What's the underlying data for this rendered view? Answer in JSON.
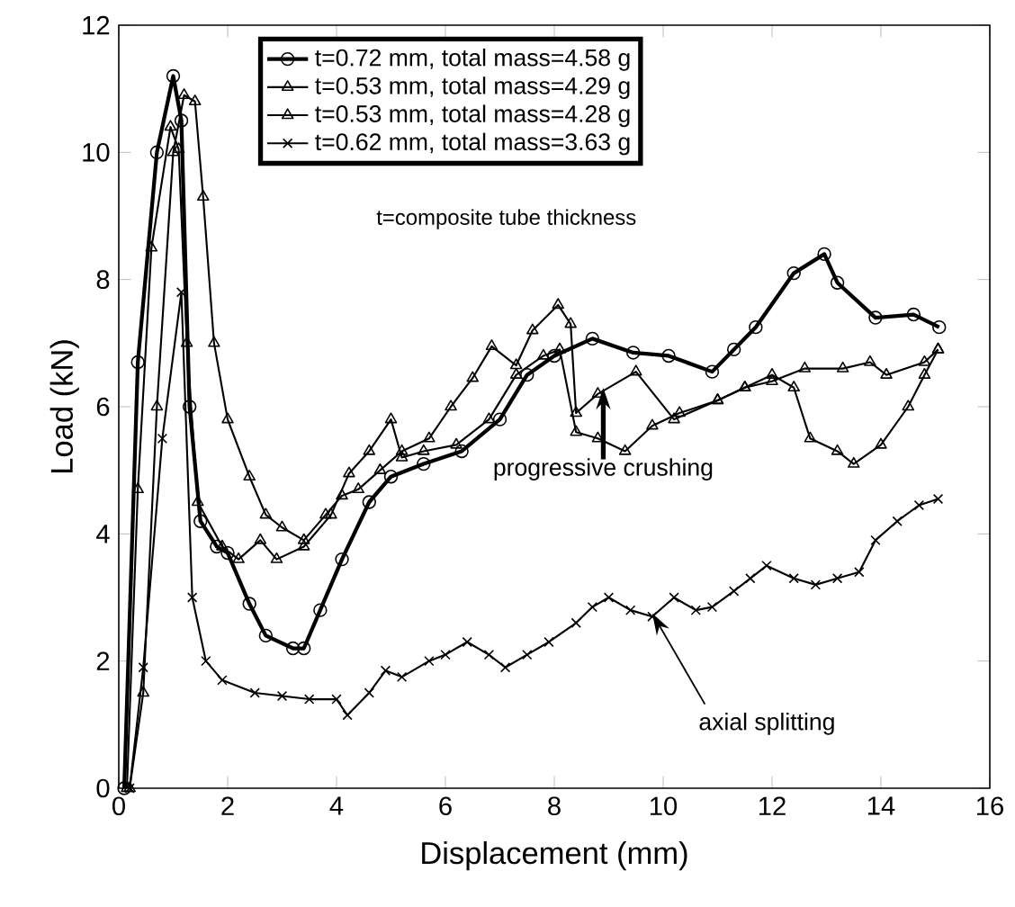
{
  "chart_data": {
    "type": "line",
    "xlabel": "Displacement (mm)",
    "ylabel": "Load (kN)",
    "xlim": [
      0,
      16
    ],
    "ylim": [
      0,
      12
    ],
    "xticks": [
      0,
      2,
      4,
      6,
      8,
      10,
      12,
      14,
      16
    ],
    "yticks": [
      0,
      2,
      4,
      6,
      8,
      10,
      12
    ],
    "grid": false,
    "legend": "top",
    "line_style": "solid",
    "series": [
      {
        "name": "t=0.72 mm, total mass=4.58 g",
        "color": "#000000",
        "marker": "circle",
        "x": [
          0.1,
          0.35,
          0.7,
          1.0,
          1.15,
          1.3,
          1.5,
          1.8,
          2.0,
          2.4,
          2.7,
          3.2,
          3.4,
          3.7,
          4.1,
          4.6,
          5.0,
          5.6,
          6.3,
          7.0,
          7.5,
          8.0,
          8.7,
          9.45,
          10.1,
          10.9,
          11.3,
          11.7,
          12.4,
          12.96,
          13.2,
          13.9,
          14.6,
          15.07
        ],
        "values": [
          0,
          6.7,
          10,
          11.2,
          10.5,
          6,
          4.2,
          3.8,
          3.7,
          2.9,
          2.4,
          2.2,
          2.2,
          2.8,
          3.6,
          4.5,
          4.9,
          5.1,
          5.3,
          5.8,
          6.5,
          6.8,
          7.07,
          6.85,
          6.8,
          6.55,
          6.9,
          7.25,
          8.1,
          8.4,
          7.95,
          7.4,
          7.45,
          7.25
        ]
      },
      {
        "name": "t=0.53 mm,  total mass=4.29 g",
        "color": "#000000",
        "marker": "triangle",
        "x": [
          0.2,
          0.45,
          0.7,
          1.0,
          1.2,
          1.4,
          1.55,
          1.75,
          2.0,
          2.4,
          2.7,
          3.0,
          3.4,
          3.8,
          4.1,
          4.4,
          4.8,
          5.2,
          5.7,
          6.1,
          6.5,
          6.85,
          7.3,
          7.6,
          8.07,
          8.3,
          8.4,
          8.8,
          9.5,
          10.2,
          11.0,
          11.5,
          12.0,
          12.6,
          13.3,
          13.8,
          14.1,
          14.8,
          15.05
        ],
        "values": [
          0,
          1.5,
          6,
          10,
          10.9,
          10.8,
          9.3,
          7,
          5.8,
          4.9,
          4.3,
          4.1,
          3.9,
          4.3,
          4.6,
          4.7,
          5,
          5.3,
          5.5,
          6,
          6.45,
          6.95,
          6.65,
          7.2,
          7.6,
          7.3,
          5.9,
          6.2,
          6.55,
          5.8,
          6.1,
          6.3,
          6.4,
          6.6,
          6.6,
          6.7,
          6.5,
          6.7,
          6.9
        ]
      },
      {
        "name": "t=0.53 mm, total mass=4.28 g",
        "color": "#000000",
        "marker": "triangle",
        "x": [
          0.15,
          0.35,
          0.6,
          0.95,
          1.1,
          1.25,
          1.45,
          1.9,
          2.2,
          2.6,
          2.9,
          3.4,
          3.9,
          4.23,
          4.6,
          5.0,
          5.2,
          5.6,
          6.2,
          6.8,
          7.3,
          7.8,
          8.1,
          8.4,
          8.8,
          9.3,
          9.8,
          10.3,
          11.0,
          11.5,
          12.0,
          12.4,
          12.7,
          13.2,
          13.5,
          14.0,
          14.5,
          14.8,
          15.05
        ],
        "values": [
          0,
          4.7,
          8.5,
          10.4,
          10.05,
          7,
          4.5,
          3.8,
          3.6,
          3.9,
          3.6,
          3.8,
          4.3,
          4.95,
          5.3,
          5.8,
          5.2,
          5.3,
          5.4,
          5.8,
          6.5,
          6.8,
          6.9,
          5.6,
          5.5,
          5.3,
          5.7,
          5.9,
          6.1,
          6.3,
          6.5,
          6.3,
          5.5,
          5.3,
          5.1,
          5.4,
          6,
          6.5,
          6.9
        ]
      },
      {
        "name": "t=0.62 mm, total mass=3.63 g",
        "color": "#000000",
        "marker": "cross",
        "x": [
          0.2,
          0.45,
          0.8,
          1.15,
          1.35,
          1.6,
          1.9,
          2.5,
          3.0,
          3.5,
          4.0,
          4.2,
          4.6,
          4.9,
          5.2,
          5.7,
          6.0,
          6.4,
          6.8,
          7.1,
          7.5,
          7.9,
          8.4,
          8.7,
          9.0,
          9.4,
          9.8,
          10.2,
          10.6,
          10.9,
          11.3,
          11.6,
          11.9,
          12.4,
          12.8,
          13.2,
          13.6,
          13.9,
          14.3,
          14.7,
          15.05
        ],
        "values": [
          0,
          1.9,
          5.5,
          7.8,
          3,
          2,
          1.7,
          1.5,
          1.45,
          1.4,
          1.4,
          1.15,
          1.5,
          1.85,
          1.75,
          2,
          2.1,
          2.3,
          2.1,
          1.9,
          2.1,
          2.3,
          2.6,
          2.85,
          3,
          2.8,
          2.7,
          3,
          2.8,
          2.85,
          3.1,
          3.3,
          3.5,
          3.3,
          3.2,
          3.3,
          3.4,
          3.9,
          4.2,
          4.45,
          4.55
        ]
      }
    ],
    "annotations": [
      "t=composite tube thickness",
      {
        "text": "progressive crushing",
        "x": 8.9,
        "y": 6.3
      },
      {
        "text": "axial splitting",
        "x": 9.8,
        "y": 2.75
      }
    ]
  }
}
